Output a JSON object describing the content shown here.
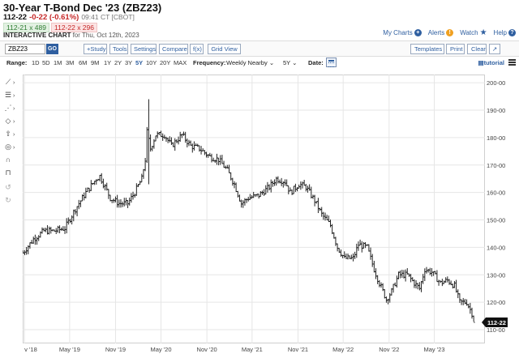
{
  "header": {
    "title": "30-Year T-Bond Dec '23 (ZBZ23)",
    "last": "112-22",
    "change": "-0-22 (-0.61%)",
    "time": "09:41 CT [CBOT]",
    "bid": "112-21 x 489",
    "ask": "112-22 x 296",
    "chart_label": "INTERACTIVE CHART",
    "chart_for": "for Thu, Oct 12th, 2023"
  },
  "links": {
    "my_charts": "My Charts",
    "alerts": "Alerts",
    "watch": "Watch",
    "help": "Help"
  },
  "toolbar": {
    "symbol": "ZBZ23",
    "go": "GO",
    "study": "+Study",
    "tools": "Tools",
    "settings": "Settings",
    "compare": "Compare",
    "fx": "f(x)",
    "grid_view": "Grid View",
    "templates": "Templates",
    "print": "Print",
    "clear": "Clear",
    "range_label": "Range:",
    "ranges": [
      "1D",
      "5D",
      "1M",
      "3M",
      "6M",
      "9M",
      "1Y",
      "2Y",
      "3Y",
      "5Y",
      "10Y",
      "20Y",
      "MAX"
    ],
    "frequency_label": "Frequency:",
    "frequency_value": "Weekly Nearby",
    "period_value": "5Y",
    "date_label": "Date:",
    "tutorial": "tutorial"
  },
  "icons": {
    "draw_tools": [
      "line-tool-icon",
      "fibonacci-tool-icon",
      "pattern-tool-icon",
      "arrow-tool-icon",
      "text-tool-icon",
      "measure-tool-icon",
      "magnet-icon",
      "lock-icon",
      "undo-icon",
      "redo-icon"
    ],
    "alerts": "alert-icon",
    "watch": "star-icon",
    "help": "question-icon",
    "my_charts": "plus-circle-icon"
  },
  "colors": {
    "link": "#2f5fa0",
    "down": "#c62828",
    "up": "#2e7d32",
    "bars": "#222222",
    "price_tag": "#111111"
  },
  "chart_data": {
    "type": "ohlc",
    "title": "",
    "xlabel": "",
    "ylabel": "",
    "ylim": [
      105,
      203
    ],
    "yticks": [
      110,
      120,
      130,
      140,
      150,
      160,
      170,
      180,
      190,
      200
    ],
    "ytick_labels": [
      "110-00",
      "120-00",
      "130-00",
      "140-00",
      "150-00",
      "160-00",
      "170-00",
      "180-00",
      "190-00",
      "200-00"
    ],
    "xticks": [
      {
        "date": "2018-11-01",
        "label": "v '18"
      },
      {
        "date": "2019-05-01",
        "label": "May '19"
      },
      {
        "date": "2019-11-01",
        "label": "Nov '19"
      },
      {
        "date": "2020-05-01",
        "label": "May '20"
      },
      {
        "date": "2020-11-01",
        "label": "Nov '20"
      },
      {
        "date": "2021-05-01",
        "label": "May '21"
      },
      {
        "date": "2021-11-01",
        "label": "Nov '21"
      },
      {
        "date": "2022-05-01",
        "label": "May '22"
      },
      {
        "date": "2022-11-01",
        "label": "Nov '22"
      },
      {
        "date": "2023-05-01",
        "label": "May '23"
      }
    ],
    "x_range": [
      "2018-10-25",
      "2023-11-20"
    ],
    "last_price": 112.6875,
    "last_price_label": "112-22",
    "grid": true,
    "frequency": "weekly",
    "close_anchors": [
      [
        "2018-10-26",
        138
      ],
      [
        "2018-12-07",
        143
      ],
      [
        "2019-01-18",
        146
      ],
      [
        "2019-03-01",
        146
      ],
      [
        "2019-04-12",
        147
      ],
      [
        "2019-05-24",
        154
      ],
      [
        "2019-07-05",
        160
      ],
      [
        "2019-08-16",
        165
      ],
      [
        "2019-08-30",
        166
      ],
      [
        "2019-09-20",
        162
      ],
      [
        "2019-10-11",
        158
      ],
      [
        "2019-11-15",
        156
      ],
      [
        "2019-12-20",
        156
      ],
      [
        "2020-01-17",
        160
      ],
      [
        "2020-02-14",
        165
      ],
      [
        "2020-02-28",
        172
      ],
      [
        "2020-03-06",
        182
      ],
      [
        "2020-03-20",
        176
      ],
      [
        "2020-04-10",
        181
      ],
      [
        "2020-05-15",
        181
      ],
      [
        "2020-06-12",
        177
      ],
      [
        "2020-07-24",
        181
      ],
      [
        "2020-08-28",
        177
      ],
      [
        "2020-10-02",
        176
      ],
      [
        "2020-11-13",
        173
      ],
      [
        "2020-12-18",
        172
      ],
      [
        "2021-01-22",
        168
      ],
      [
        "2021-02-19",
        163
      ],
      [
        "2021-03-19",
        156
      ],
      [
        "2021-04-16",
        158
      ],
      [
        "2021-05-28",
        159
      ],
      [
        "2021-07-09",
        162
      ],
      [
        "2021-08-06",
        165
      ],
      [
        "2021-09-10",
        164
      ],
      [
        "2021-10-01",
        160
      ],
      [
        "2021-11-05",
        163
      ],
      [
        "2021-12-03",
        162
      ],
      [
        "2022-01-07",
        157
      ],
      [
        "2022-02-04",
        152
      ],
      [
        "2022-03-11",
        148
      ],
      [
        "2022-04-08",
        140
      ],
      [
        "2022-05-06",
        136
      ],
      [
        "2022-06-10",
        136
      ],
      [
        "2022-07-01",
        141
      ],
      [
        "2022-08-05",
        140
      ],
      [
        "2022-09-02",
        132
      ],
      [
        "2022-09-23",
        127
      ],
      [
        "2022-10-21",
        121
      ],
      [
        "2022-11-11",
        124
      ],
      [
        "2022-12-09",
        130
      ],
      [
        "2023-01-13",
        130
      ],
      [
        "2023-02-10",
        127
      ],
      [
        "2023-03-03",
        125
      ],
      [
        "2023-03-24",
        132
      ],
      [
        "2023-04-21",
        131
      ],
      [
        "2023-05-26",
        127
      ],
      [
        "2023-06-23",
        128
      ],
      [
        "2023-07-21",
        126
      ],
      [
        "2023-08-11",
        120
      ],
      [
        "2023-09-08",
        120
      ],
      [
        "2023-09-29",
        116
      ],
      [
        "2023-10-12",
        112.7
      ]
    ],
    "spikes": [
      [
        "2020-03-13",
        194,
        163
      ]
    ]
  }
}
